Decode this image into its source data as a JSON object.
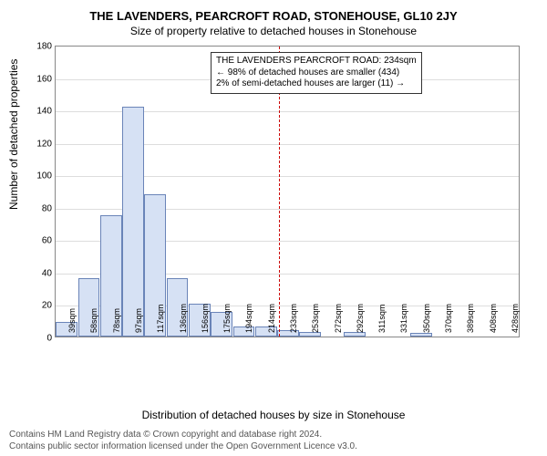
{
  "title_line1": "THE LAVENDERS, PEARCROFT ROAD, STONEHOUSE, GL10 2JY",
  "title_line2": "Size of property relative to detached houses in Stonehouse",
  "axes": {
    "ylabel": "Number of detached properties",
    "xlabel": "Distribution of detached houses by size in Stonehouse",
    "ymin": 0,
    "ymax": 180,
    "ytick_step": 20,
    "grid_color": "#dddddd",
    "axis_color": "#888888",
    "label_fontsize": 12,
    "tick_fontsize": 10
  },
  "histogram": {
    "type": "bar",
    "bar_fill": "#d6e1f4",
    "bar_border": "#6a84b8",
    "data": [
      {
        "label": "39sqm",
        "value": 9
      },
      {
        "label": "58sqm",
        "value": 36
      },
      {
        "label": "78sqm",
        "value": 75
      },
      {
        "label": "97sqm",
        "value": 142
      },
      {
        "label": "117sqm",
        "value": 88
      },
      {
        "label": "136sqm",
        "value": 36
      },
      {
        "label": "156sqm",
        "value": 20
      },
      {
        "label": "175sqm",
        "value": 15
      },
      {
        "label": "194sqm",
        "value": 6
      },
      {
        "label": "214sqm",
        "value": 6
      },
      {
        "label": "233sqm",
        "value": 4
      },
      {
        "label": "253sqm",
        "value": 3
      },
      {
        "label": "272sqm",
        "value": 0
      },
      {
        "label": "292sqm",
        "value": 3
      },
      {
        "label": "311sqm",
        "value": 0
      },
      {
        "label": "331sqm",
        "value": 0
      },
      {
        "label": "350sqm",
        "value": 2
      },
      {
        "label": "370sqm",
        "value": 0
      },
      {
        "label": "389sqm",
        "value": 0
      },
      {
        "label": "408sqm",
        "value": 0
      },
      {
        "label": "428sqm",
        "value": 0
      }
    ]
  },
  "reference_line": {
    "at_index": 10.1,
    "color": "#cc0000",
    "dash": "1px dashed"
  },
  "annotation": {
    "line1": "THE LAVENDERS PEARCROFT ROAD: 234sqm",
    "line2": "← 98% of detached houses are smaller (434)",
    "line3": "2% of semi-detached houses are larger (11) →",
    "border_color": "#333333",
    "background": "#ffffff",
    "fontsize": 10
  },
  "footer": {
    "line1": "Contains HM Land Registry data © Crown copyright and database right 2024.",
    "line2": "Contains public sector information licensed under the Open Government Licence v3.0.",
    "color": "#555555",
    "fontsize": 10
  }
}
